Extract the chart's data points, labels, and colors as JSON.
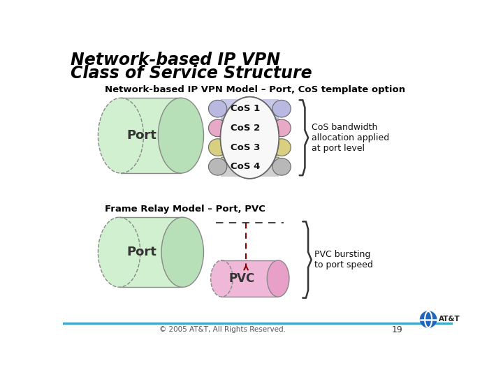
{
  "title_line1": "Network-based IP VPN",
  "title_line2": "Class of Service Structure",
  "subtitle1": "Network-based IP VPN Model – Port, CoS template option",
  "subtitle2": "Frame Relay Model – Port, PVC",
  "cos_labels": [
    "CoS 1",
    "CoS 2",
    "CoS 3",
    "CoS 4"
  ],
  "cos_colors": [
    "#c8c8e8",
    "#f0c0d8",
    "#e8e0b0",
    "#d0d0d0"
  ],
  "cos_right_cap_colors": [
    "#b8b8e0",
    "#e8a8c8",
    "#d8d080",
    "#b8b8b8"
  ],
  "cos_left_cap_colors": [
    "#b8b8e0",
    "#e8a8c8",
    "#d8d080",
    "#b8b8b8"
  ],
  "port_fill": "#d0f0d0",
  "port_edge": "#888888",
  "port_right_ellipse_fill": "#b8e0b8",
  "pvc_fill": "#f0b8d8",
  "pvc_edge": "#888888",
  "pvc_right_ellipse_fill": "#e8a0c8",
  "cos_brace_text": "CoS bandwidth\nallocation applied\nat port level",
  "pvc_brace_text": "PVC bursting\nto port speed",
  "footer_text": "© 2005 AT&T, All Rights Reserved.",
  "page_number": "19",
  "bg_color": "#ffffff",
  "title_color": "#000000",
  "cos_oval_fill": "#f8f8f8",
  "pvc_label": "PVC",
  "footer_line_color": "#44aacc",
  "att_globe_color": "#2266aa",
  "dashed_line_color": "#444444",
  "arrow_color": "#880000"
}
